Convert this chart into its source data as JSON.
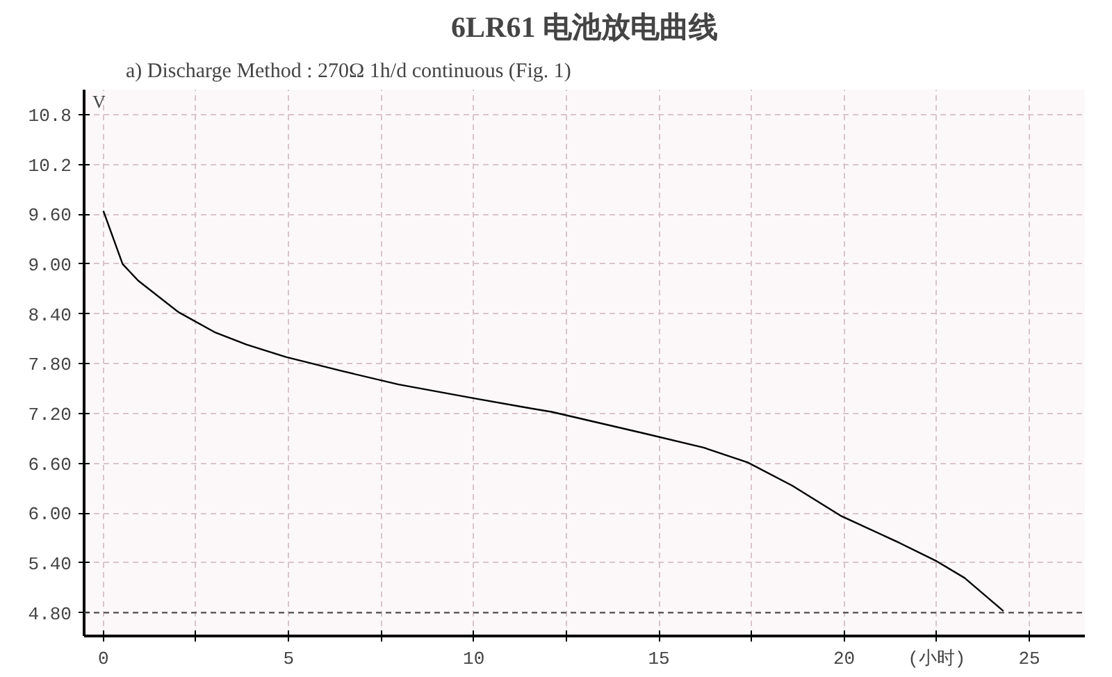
{
  "chart_data": {
    "type": "line",
    "title": "6LR61 电池放电曲线",
    "subtitle": "a)    Discharge Method : 270Ω   1h/d    continuous    (Fig. 1)",
    "ylabel": "V",
    "x": [
      0,
      0.52,
      0.94,
      2.03,
      3.0,
      3.86,
      4.93,
      6.45,
      7.97,
      10.04,
      11.43,
      12.1,
      14.6,
      16.2,
      17.4,
      18.6,
      19.9,
      21.5,
      22.46,
      23.25,
      24.3
    ],
    "series": [
      {
        "color": "#000000",
        "values": [
          9.64,
          9.0,
          8.8,
          8.42,
          8.18,
          8.03,
          7.88,
          7.71,
          7.55,
          7.38,
          7.27,
          7.22,
          6.96,
          6.79,
          6.61,
          6.33,
          5.97,
          5.64,
          5.43,
          5.22,
          4.82
        ]
      }
    ],
    "xlim": [
      -0.52,
      26.5
    ],
    "ylim": [
      4.52,
      11.1
    ],
    "xticks": [
      0,
      {
        "value": 2.5,
        "label": null
      },
      5,
      {
        "value": 7.5,
        "label": null
      },
      10,
      {
        "value": 12.5,
        "label": null
      },
      15,
      {
        "value": 17.5,
        "label": null
      },
      20,
      {
        "value": 22.5,
        "label": "(小时)"
      },
      25
    ],
    "yticks": [
      {
        "value": 4.8,
        "label": "4.80"
      },
      {
        "value": 5.4,
        "label": "5.40"
      },
      {
        "value": 6.0,
        "label": "6.00"
      },
      {
        "value": 6.6,
        "label": "6.60"
      },
      {
        "value": 7.2,
        "label": "7.20"
      },
      {
        "value": 7.8,
        "label": "7.80"
      },
      {
        "value": 8.4,
        "label": "8.40"
      },
      {
        "value": 9.0,
        "label": "9.00"
      },
      {
        "value": 9.6,
        "label": "9.60"
      },
      10.2,
      10.8
    ],
    "ref_lines": [
      {
        "axis": "y",
        "value": 4.8,
        "color": "#444444",
        "line_style": "dashed"
      }
    ],
    "grid": true,
    "line_style": "solid",
    "marker": "none"
  }
}
